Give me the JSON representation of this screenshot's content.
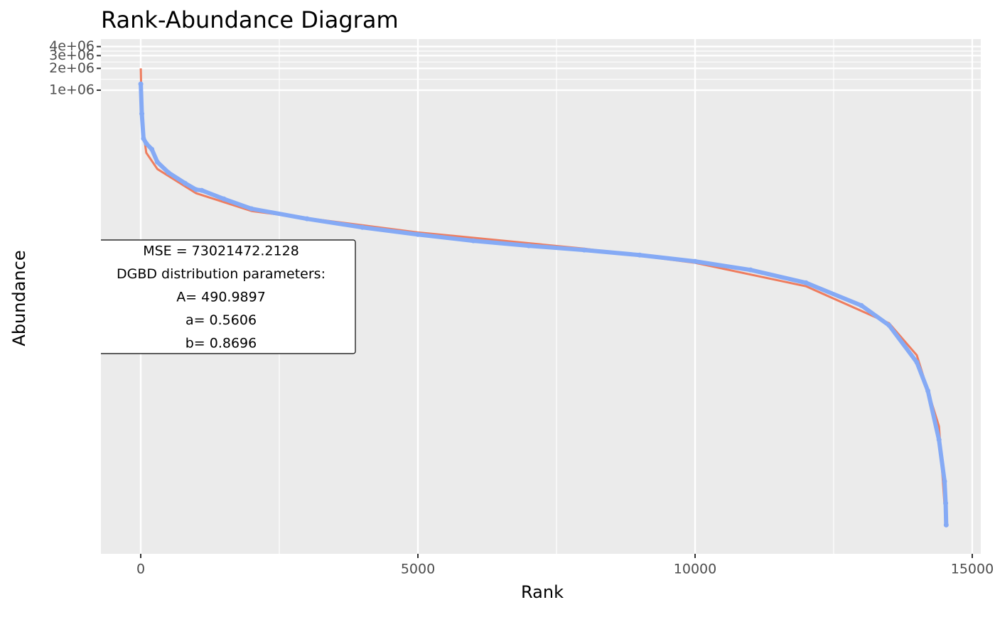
{
  "chart_data": {
    "type": "line",
    "title": "Rank-Abundance Diagram",
    "x_label": "Rank",
    "y_label": "Abundance",
    "y_log": true,
    "grid": true,
    "xlim": [
      -718,
      15154
    ],
    "ylim": [
      0.4,
      5080000
    ],
    "xticks": [
      0,
      5000,
      10000,
      15000
    ],
    "yticks": [
      {
        "value": 1000000,
        "label": "1e+06"
      },
      {
        "value": 2000000,
        "label": "2e+06"
      },
      {
        "value": 3000000,
        "label": "3e+06"
      },
      {
        "value": 4000000,
        "label": "4e+06"
      }
    ],
    "series": [
      {
        "type": "line",
        "color": "#ee7d5f",
        "x": [
          1,
          20,
          100,
          300,
          1000,
          2000,
          5000,
          8000,
          10000,
          12000,
          13500,
          14000,
          14400,
          14500
        ],
        "values": [
          2000000,
          379000,
          137000,
          81700,
          37800,
          21500,
          10900,
          6510,
          4150,
          1970,
          608,
          220,
          23,
          1.9
        ]
      },
      {
        "type": "scatter",
        "color": "#85aaf5",
        "x": [
          1,
          20,
          50,
          100,
          200,
          300,
          500,
          800,
          1000,
          1100,
          1500,
          2000,
          3000,
          4000,
          5000,
          6000,
          7000,
          8000,
          9000,
          10000,
          11000,
          12000,
          13000,
          13500,
          14000,
          14200,
          14400,
          14500,
          14520,
          14530
        ],
        "values": [
          1220000,
          474000,
          215000,
          184000,
          153000,
          102000,
          72900,
          52000,
          42400,
          41500,
          31600,
          23100,
          16800,
          12800,
          10200,
          8350,
          7130,
          6230,
          5310,
          4340,
          3310,
          2200,
          1070,
          569,
          176,
          71,
          15,
          4,
          2,
          1
        ]
      }
    ],
    "annotation": [
      "MSE = 73021472.2128",
      "DGBD distribution parameters:",
      "A= 490.9897",
      "a= 0.5606",
      "b= 0.8696"
    ]
  }
}
